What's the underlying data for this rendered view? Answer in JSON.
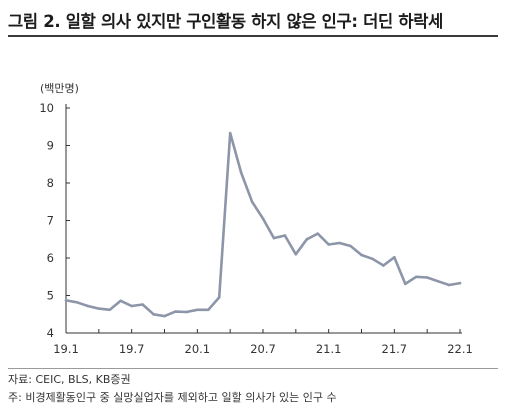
{
  "header": {
    "title": "그림 2. 일할 의사 있지만 구인활동 하지 않은 인구: 더딘 하락세"
  },
  "footer": {
    "source": "자료: CEIC, BLS, KB증권",
    "note": "주: 비경제활동인구 중 실망실업자를 제외하고 일할 의사가 있는 인구 수"
  },
  "chart_data": {
    "type": "line",
    "ylabel": "(백만명)",
    "ylim": [
      4,
      10
    ],
    "yticks": [
      4,
      5,
      6,
      7,
      8,
      9,
      10
    ],
    "x_tick_labels": [
      "19.1",
      "19.7",
      "20.1",
      "20.7",
      "21.1",
      "21.7",
      "22.1"
    ],
    "grid": false,
    "line_color": "#8c96a8",
    "x": [
      "2019-01",
      "2019-02",
      "2019-03",
      "2019-04",
      "2019-05",
      "2019-06",
      "2019-07",
      "2019-08",
      "2019-09",
      "2019-10",
      "2019-11",
      "2019-12",
      "2020-01",
      "2020-02",
      "2020-03",
      "2020-04",
      "2020-05",
      "2020-06",
      "2020-07",
      "2020-08",
      "2020-09",
      "2020-10",
      "2020-11",
      "2020-12",
      "2021-01",
      "2021-02",
      "2021-03",
      "2021-04",
      "2021-05",
      "2021-06",
      "2021-07",
      "2021-08",
      "2021-09",
      "2021-10",
      "2021-11",
      "2021-12",
      "2022-01"
    ],
    "values": [
      4.87,
      4.82,
      4.72,
      4.65,
      4.62,
      4.86,
      4.72,
      4.76,
      4.5,
      4.45,
      4.57,
      4.56,
      4.62,
      4.62,
      4.95,
      9.33,
      8.28,
      7.5,
      7.05,
      6.53,
      6.6,
      6.1,
      6.5,
      6.65,
      6.36,
      6.4,
      6.32,
      6.08,
      5.98,
      5.8,
      6.02,
      5.31,
      5.5,
      5.48,
      5.38,
      5.28,
      5.33
    ]
  }
}
